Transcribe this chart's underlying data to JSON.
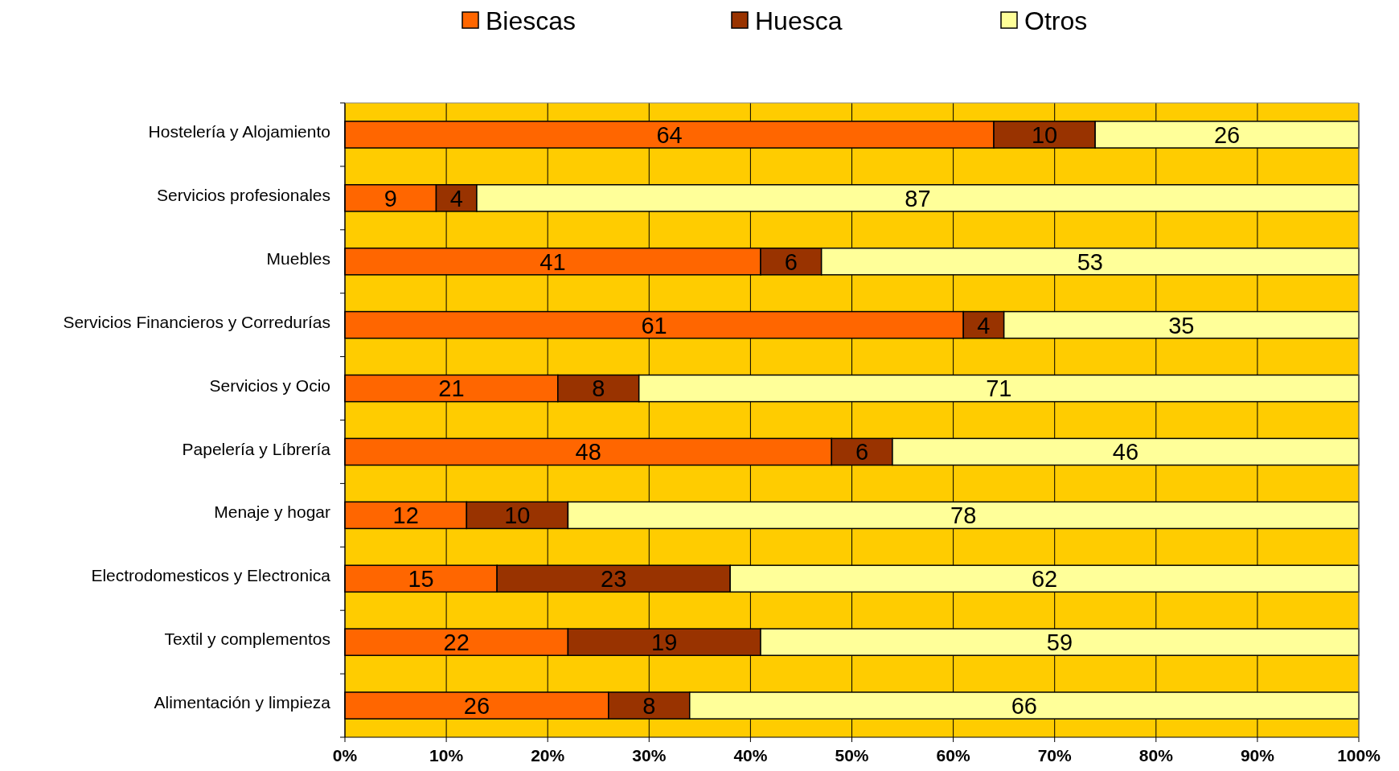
{
  "chart_data": {
    "type": "bar",
    "orientation": "horizontal",
    "stacked": true,
    "data_labels": true,
    "legend": "top",
    "grid": "x",
    "categories": [
      "Hostelería y Alojamiento",
      "Servicios profesionales",
      "Muebles",
      "Servicios Financieros y Corredurías",
      "Servicios y Ocio",
      "Papelería y Líbrería",
      "Menaje y hogar",
      "Electrodomesticos y Electronica",
      "Textil y complementos",
      "Alimentación y limpieza"
    ],
    "series": [
      {
        "name": "Biescas",
        "color": "#ff6600",
        "values": [
          64,
          9,
          41,
          61,
          21,
          48,
          12,
          15,
          22,
          26
        ]
      },
      {
        "name": "Huesca",
        "color": "#993300",
        "values": [
          10,
          4,
          6,
          4,
          8,
          6,
          10,
          23,
          19,
          8
        ]
      },
      {
        "name": "Otros",
        "color": "#ffff99",
        "values": [
          26,
          87,
          53,
          35,
          71,
          46,
          78,
          62,
          59,
          66
        ]
      }
    ],
    "xlim": [
      0,
      100
    ],
    "xticks": [
      {
        "value": 0,
        "label": "0%"
      },
      {
        "value": 10,
        "label": "10%"
      },
      {
        "value": 20,
        "label": "20%"
      },
      {
        "value": 30,
        "label": "30%"
      },
      {
        "value": 40,
        "label": "40%"
      },
      {
        "value": 50,
        "label": "50%"
      },
      {
        "value": 60,
        "label": "60%"
      },
      {
        "value": 70,
        "label": "70%"
      },
      {
        "value": 80,
        "label": "80%"
      },
      {
        "value": 90,
        "label": "90%"
      },
      {
        "value": 100,
        "label": "100%"
      }
    ]
  }
}
